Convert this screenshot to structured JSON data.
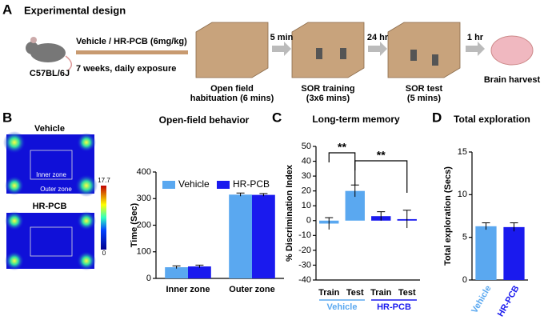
{
  "figure": {
    "panel_labels": [
      "A",
      "B",
      "C",
      "D"
    ]
  },
  "diagram": {
    "title": "Experimental design",
    "strain": "C57BL/6J",
    "treatment": "Vehicle / HR-PCB (6mg/kg)",
    "exposure": "7 weeks, daily exposure",
    "steps": [
      {
        "label": "Open field",
        "sub": "habituation (6 mins)"
      },
      {
        "label": "SOR training",
        "sub": "(3x6 mins)"
      },
      {
        "label": "SOR test",
        "sub": "(5 mins)"
      },
      {
        "label": "Brain harvest"
      }
    ],
    "intervals": [
      "5 min",
      "24 hr",
      "1 hr"
    ]
  },
  "heatmap": {
    "labels": [
      "Vehicle",
      "HR-PCB"
    ],
    "zones": [
      "Inner zone",
      "Outer zone"
    ],
    "scale_max": 17.7,
    "scale_min": 0
  },
  "chart_data": [
    {
      "type": "bar",
      "title": "Open-field behavior",
      "ylabel": "Time (Sec)",
      "categories": [
        "Inner zone",
        "Outer zone"
      ],
      "series": [
        {
          "name": "Vehicle",
          "color": "#5aa8f0",
          "values": [
            42,
            315
          ],
          "errors": [
            5,
            6
          ]
        },
        {
          "name": "HR-PCB",
          "color": "#1a1aee",
          "values": [
            45,
            314
          ],
          "errors": [
            5,
            5
          ]
        }
      ],
      "ylim": [
        0,
        400
      ],
      "yticks": [
        0,
        100,
        200,
        300,
        400
      ]
    },
    {
      "type": "bar",
      "title": "Long-term memory",
      "ylabel": "% Discrimination Index",
      "categories": [
        "Train",
        "Test",
        "Train",
        "Test"
      ],
      "values": [
        -2,
        20,
        3,
        1
      ],
      "errors": [
        4,
        4,
        3,
        6
      ],
      "colors": [
        "#5aa8f0",
        "#5aa8f0",
        "#1a1aee",
        "#1a1aee"
      ],
      "groups": [
        "Vehicle",
        "HR-PCB"
      ],
      "group_colors": [
        "#5aa8f0",
        "#1a1aee"
      ],
      "annotations": [
        "**",
        "**"
      ],
      "ylim": [
        -40,
        50
      ],
      "yticks": [
        -40,
        -30,
        -20,
        -10,
        0,
        10,
        20,
        30,
        40,
        50
      ]
    },
    {
      "type": "bar",
      "title": "Total exploration",
      "ylabel": "Total exploration (Secs)",
      "categories": [
        "Vehicle",
        "HR-PCB"
      ],
      "values": [
        6.3,
        6.2
      ],
      "errors": [
        0.4,
        0.5
      ],
      "colors": [
        "#5aa8f0",
        "#1a1aee"
      ],
      "label_colors": [
        "#5aa8f0",
        "#1a1aee"
      ],
      "ylim": [
        0,
        15
      ],
      "yticks": [
        0,
        5,
        10,
        15
      ]
    }
  ]
}
